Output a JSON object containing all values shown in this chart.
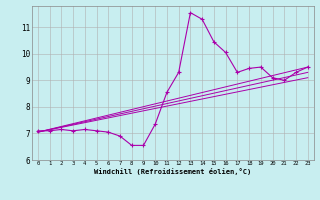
{
  "xlabel": "Windchill (Refroidissement éolien,°C)",
  "bg_color": "#c8eef0",
  "grid_color": "#b0b0b0",
  "line_color": "#aa00aa",
  "xlim": [
    -0.5,
    23.5
  ],
  "ylim": [
    6.0,
    11.8
  ],
  "yticks": [
    6,
    7,
    8,
    9,
    10,
    11
  ],
  "xticks": [
    0,
    1,
    2,
    3,
    4,
    5,
    6,
    7,
    8,
    9,
    10,
    11,
    12,
    13,
    14,
    15,
    16,
    17,
    18,
    19,
    20,
    21,
    22,
    23
  ],
  "line1_x": [
    0,
    1,
    2,
    3,
    4,
    5,
    6,
    7,
    8,
    9,
    10,
    11,
    12,
    13,
    14,
    15,
    16,
    17,
    18,
    19,
    20,
    21,
    22,
    23
  ],
  "line1_y": [
    7.1,
    7.1,
    7.15,
    7.1,
    7.15,
    7.1,
    7.05,
    6.9,
    6.55,
    6.55,
    7.35,
    8.55,
    9.3,
    11.55,
    11.3,
    10.45,
    10.05,
    9.3,
    9.45,
    9.5,
    9.1,
    9.0,
    9.3,
    9.5
  ],
  "line2_x": [
    0,
    23
  ],
  "line2_y": [
    7.05,
    9.5
  ],
  "line3_x": [
    0,
    23
  ],
  "line3_y": [
    7.05,
    9.3
  ],
  "line4_x": [
    0,
    23
  ],
  "line4_y": [
    7.05,
    9.1
  ]
}
